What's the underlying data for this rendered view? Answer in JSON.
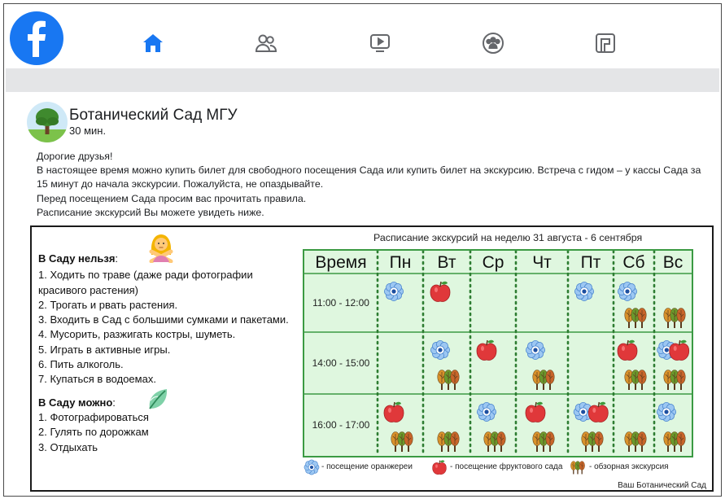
{
  "nav": {
    "logo_icon": "facebook-logo",
    "items": [
      {
        "name": "home",
        "icon": "home-icon",
        "color": "#1877f2"
      },
      {
        "name": "friends",
        "icon": "friends-icon",
        "color": "#65676b"
      },
      {
        "name": "watch",
        "icon": "watch-icon",
        "color": "#65676b"
      },
      {
        "name": "groups",
        "icon": "groups-icon",
        "color": "#65676b"
      },
      {
        "name": "gaming",
        "icon": "gaming-icon",
        "color": "#65676b"
      }
    ]
  },
  "post": {
    "page_name": "Ботанический Сад МГУ",
    "time": "30 мин.",
    "text_lines": [
      "Дорогие друзья!",
      "В настоящее время можно купить билет для свободного посещения Сада или купить билет на экскурсию. Встреча с гидом – у кассы Сада за",
      "15 минут до начала экскурсии. Пожалуйста, не опаздывайте.",
      "Перед посещением Сада просим вас прочитать правила.",
      "Расписание экскурсий Вы можете увидеть ниже."
    ]
  },
  "card": {
    "forbidden_title": "В Саду нельзя",
    "forbidden_items": [
      "1.  Ходить по траве (даже ради фотографии",
      "красивого растения)",
      "2.  Трогать и рвать растения.",
      "3.  Входить в Сад с большими сумками и пакетами.",
      "4.  Мусорить, разжигать костры, шуметь.",
      "5.  Играть в активные игры.",
      "6.  Пить алкоголь.",
      "7.  Купаться в водоемах."
    ],
    "allowed_title": "В Саду можно",
    "allowed_items": [
      "1.  Фотографироваться",
      "2.  Гулять по дорожкам",
      "3.  Отдыхать"
    ],
    "schedule_title": "Расписание экскурсий на неделю 31 августа - 6 сентября",
    "time_header": "Время",
    "days": [
      "Пн",
      "Вт",
      "Ср",
      "Чт",
      "Пт",
      "Сб",
      "Вс"
    ],
    "slots": [
      "11:00 - 12:00",
      "14:00 - 15:00",
      "16:00 - 17:00"
    ],
    "cells": [
      [
        [
          "flower"
        ],
        [
          "apple"
        ],
        [],
        [],
        [
          "flower"
        ],
        [
          "flower",
          "trees"
        ],
        [
          "trees"
        ]
      ],
      [
        [],
        [
          "flower",
          "trees"
        ],
        [
          "apple"
        ],
        [
          "flower",
          "trees"
        ],
        [],
        [
          "apple",
          "trees"
        ],
        [
          "flower",
          "apple",
          "trees"
        ]
      ],
      [
        [
          "apple",
          "trees"
        ],
        [
          "trees"
        ],
        [
          "flower",
          "trees"
        ],
        [
          "apple",
          "trees"
        ],
        [
          "flower",
          "apple",
          "trees"
        ],
        [
          "trees"
        ],
        [
          "flower",
          "trees"
        ]
      ]
    ],
    "legend": {
      "flower": "- посещение оранжереи",
      "apple": "- посещение фруктового сада",
      "trees": "- обзорная экскурсия"
    },
    "signature": "Ваш Ботанический Сад",
    "colors": {
      "grid_border": "#3b9a43",
      "grid_bg": "#dff7df",
      "dots": "#2e7d32"
    }
  }
}
